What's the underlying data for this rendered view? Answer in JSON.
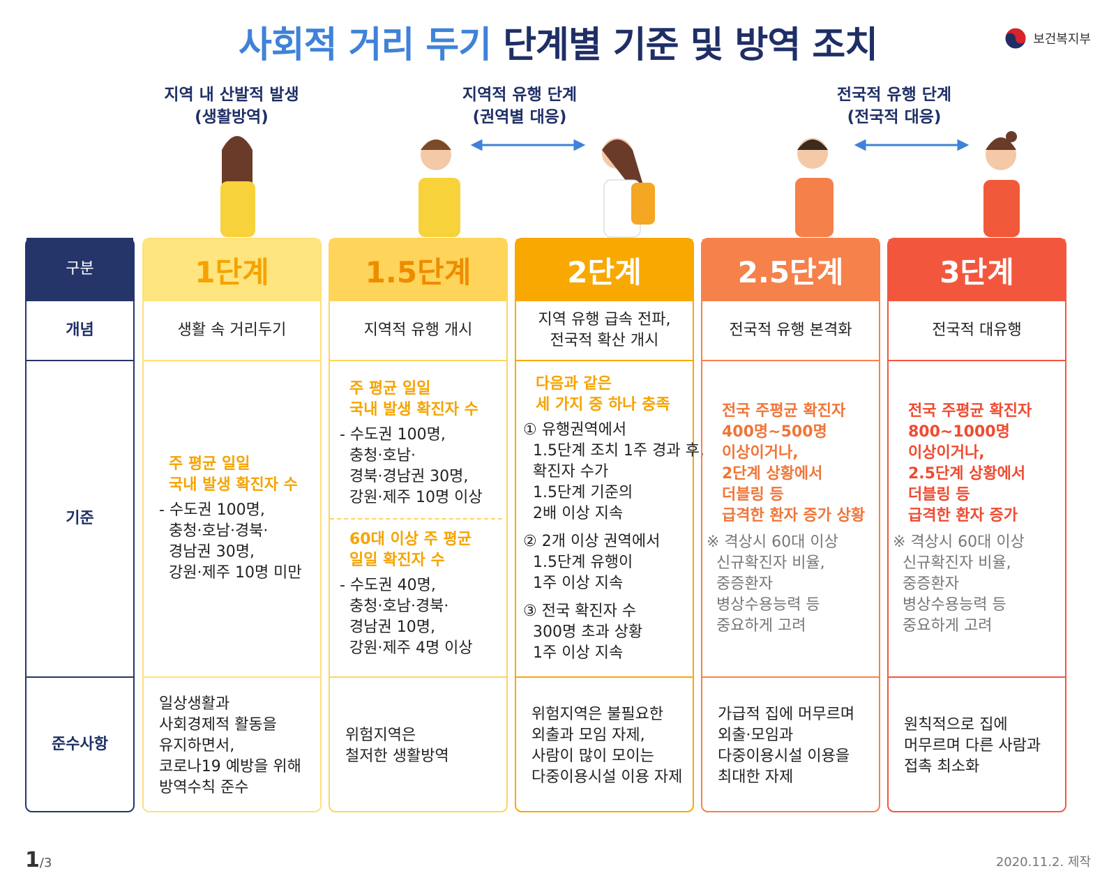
{
  "header": {
    "title_part1": "사회적 거리 두기",
    "title_part2": "단계별 기준 및 방역 조치",
    "ministry": "보건복지부"
  },
  "phases": [
    {
      "name": "지역 내 산발적 발생",
      "sub": "(생활방역)"
    },
    {
      "name": "지역적 유행 단계",
      "sub": "(권역별 대응)"
    },
    {
      "name": "전국적 유행 단계",
      "sub": "(전국적 대응)"
    }
  ],
  "table": {
    "row_headers": [
      "구분",
      "개념",
      "기준",
      "준수사항"
    ],
    "levels": [
      {
        "level": "1단계",
        "concept": [
          "생활 속 거리두기"
        ],
        "criteria": [
          {
            "heading": [
              "주 평균 일일",
              "국내 발생 확진자 수"
            ],
            "lines": [
              "- 수도권 100명,",
              "충청·호남·경북·",
              "경남권 30명,",
              "강원·제주 10명 미만"
            ]
          }
        ],
        "rules": [
          "일상생활과",
          "사회경제적 활동을",
          "유지하면서,",
          "코로나19 예방을 위해",
          "방역수칙 준수"
        ]
      },
      {
        "level": "1.5단계",
        "concept": [
          "지역적 유행 개시"
        ],
        "criteria": [
          {
            "heading": [
              "주 평균 일일",
              "국내 발생 확진자 수"
            ],
            "lines": [
              "- 수도권 100명,",
              "충청·호남·",
              "경북·경남권 30명,",
              "강원·제주 10명 이상"
            ]
          },
          {
            "heading": [
              "60대 이상 주 평균",
              "일일 확진자 수"
            ],
            "lines": [
              "- 수도권 40명,",
              "충청·호남·경북·",
              "경남권 10명,",
              "강원·제주 4명 이상"
            ]
          }
        ],
        "rules": [
          "위험지역은",
          "철저한 생활방역"
        ]
      },
      {
        "level": "2단계",
        "concept": [
          "지역 유행 급속 전파,",
          "전국적 확산 개시"
        ],
        "criteria": [
          {
            "heading": [
              "다음과 같은",
              "세 가지 중 하나 충족"
            ],
            "items": [
              [
                "① 유행권역에서",
                "1.5단계 조치 1주 경과 후,",
                "확진자 수가",
                "1.5단계 기준의",
                "2배 이상 지속"
              ],
              [
                "② 2개 이상 권역에서",
                "1.5단계 유행이",
                "1주 이상 지속"
              ],
              [
                "③ 전국 확진자 수",
                "300명 초과 상황",
                "1주 이상 지속"
              ]
            ]
          }
        ],
        "rules": [
          "위험지역은 불필요한",
          "외출과 모임 자제,",
          "사람이 많이 모이는",
          "다중이용시설 이용 자제"
        ]
      },
      {
        "level": "2.5단계",
        "concept": [
          "전국적 유행 본격화"
        ],
        "criteria": [
          {
            "heading": [
              "전국 주평균 확진자",
              "400명~500명",
              "이상이거나,",
              "2단계 상황에서",
              "더블링 등",
              "급격한 환자 증가 상황"
            ],
            "note": [
              "※ 격상시 60대 이상",
              "신규확진자 비율,",
              "중증환자",
              "병상수용능력 등",
              "중요하게 고려"
            ]
          }
        ],
        "rules": [
          "가급적 집에 머무르며",
          "외출·모임과",
          "다중이용시설 이용을",
          "최대한 자제"
        ]
      },
      {
        "level": "3단계",
        "concept": [
          "전국적 대유행"
        ],
        "criteria": [
          {
            "heading": [
              "전국 주평균 확진자",
              "800~1000명",
              "이상이거나,",
              "2.5단계 상황에서",
              "더블링 등",
              "급격한 환자 증가"
            ],
            "note": [
              "※ 격상시 60대 이상",
              "신규확진자 비율,",
              "중증환자",
              "병상수용능력 등",
              "중요하게 고려"
            ]
          }
        ],
        "rules": [
          "원칙적으로 집에",
          "머무르며 다른 사람과",
          "접촉 최소화"
        ]
      }
    ]
  },
  "footer": {
    "page": "1",
    "total": "/3",
    "date": "2020.11.2. 제작"
  }
}
